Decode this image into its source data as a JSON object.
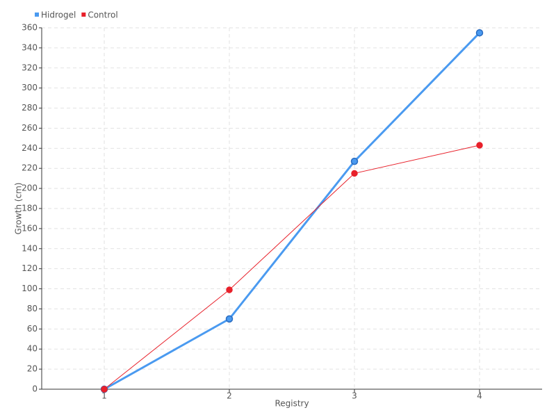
{
  "chart_data": {
    "type": "line",
    "x_label": "Registry",
    "y_label": "Growth (cm)",
    "x": [
      1,
      2,
      3,
      4
    ],
    "xlim": [
      0.5,
      4.5
    ],
    "xticks": [
      1,
      2,
      3,
      4
    ],
    "ylim": [
      0,
      360
    ],
    "yticks": [
      0,
      20,
      40,
      60,
      80,
      100,
      120,
      140,
      160,
      180,
      200,
      220,
      240,
      260,
      280,
      300,
      320,
      340,
      360
    ],
    "grid": true,
    "legend": "top-left",
    "series": [
      {
        "name": "Hidrogel",
        "color": "#4a9af0",
        "values": [
          0,
          70,
          227,
          355
        ]
      },
      {
        "name": "Control",
        "color": "#e8202a",
        "values": [
          0,
          99,
          215,
          243
        ]
      }
    ]
  }
}
